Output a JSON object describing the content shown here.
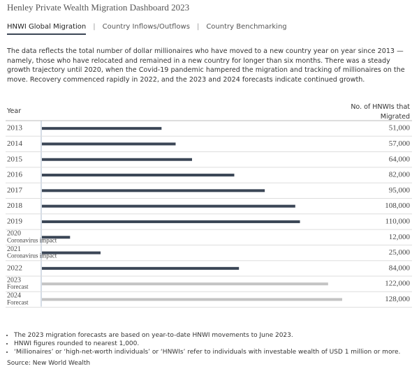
{
  "header": {
    "title": "Henley Private Wealth Migration Dashboard 2023"
  },
  "tabs": [
    {
      "label": "HNWI Global Migration",
      "active": true
    },
    {
      "label": "Country Inflows/Outflows",
      "active": false
    },
    {
      "label": "Country Benchmarking",
      "active": false
    }
  ],
  "description": "The data reflects the total number of dollar millionaires who have moved to a new country year on year since 2013 — namely, those who have relocated and remained in a new country for longer than six months. There was a steady growth trajectory until 2020, when the Covid-19 pandemic hampered the migration and tracking of millionaires on the move. Recovery commenced rapidly in 2022, and the 2023 and 2024 forecasts indicate continued growth.",
  "chart_data": {
    "type": "bar",
    "orientation": "horizontal",
    "category_header": "Year",
    "value_header": "No. of HNWIs that Migrated",
    "categories": [
      "2013",
      "2014",
      "2015",
      "2016",
      "2017",
      "2018",
      "2019",
      "2020",
      "2021",
      "2022",
      "2023",
      "2024"
    ],
    "category_notes": [
      null,
      null,
      null,
      null,
      null,
      null,
      null,
      "Coronavirus impact",
      "Coronavirus impact",
      null,
      "Forecast",
      "Forecast"
    ],
    "values": [
      51000,
      57000,
      64000,
      82000,
      95000,
      108000,
      110000,
      12000,
      25000,
      84000,
      122000,
      128000
    ],
    "value_labels": [
      "51,000",
      "57,000",
      "64,000",
      "82,000",
      "95,000",
      "108,000",
      "110,000",
      "12,000",
      "25,000",
      "84,000",
      "122,000",
      "128,000"
    ],
    "colors": [
      "#3b4656",
      "#3b4656",
      "#3b4656",
      "#3b4656",
      "#3b4656",
      "#3b4656",
      "#3b4656",
      "#3b4656",
      "#3b4656",
      "#3b4656",
      "#c4c4c4",
      "#c4c4c4"
    ]
  },
  "notes": [
    "The 2023 migration forecasts are based on year-to-date HNWI movements to June 2023.",
    "HNWI figures rounded to nearest 1,000.",
    "‘Millionaires’ or ‘high-net-worth individuals’ or ‘HNWIs’ refer to individuals with investable wealth of USD 1 million or more."
  ],
  "source": "Source: New World Wealth"
}
